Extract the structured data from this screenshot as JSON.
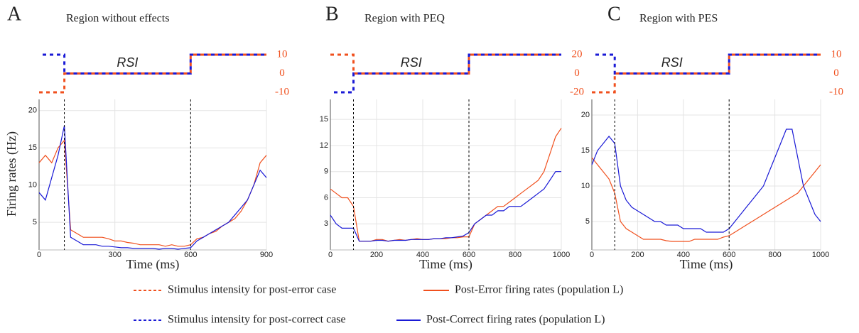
{
  "chart_data": [
    {
      "type": "line",
      "panel_label": "A",
      "title": "Region without effects",
      "x_label": "Time (ms)",
      "y_label": "Firing rates (Hz)",
      "x": [
        0,
        25,
        50,
        75,
        100,
        125,
        150,
        175,
        200,
        225,
        250,
        275,
        300,
        325,
        350,
        375,
        400,
        425,
        450,
        475,
        500,
        525,
        550,
        575,
        600,
        625,
        650,
        675,
        700,
        725,
        750,
        775,
        800,
        825,
        850,
        875,
        900
      ],
      "series": [
        {
          "name": "Post-Error firing rates (population L)",
          "color": "#f0501e",
          "values": [
            13,
            14,
            13,
            15,
            16,
            4,
            3.5,
            3,
            3,
            3,
            3,
            2.8,
            2.5,
            2.5,
            2.3,
            2.2,
            2,
            2,
            2,
            2,
            1.8,
            2,
            1.8,
            1.8,
            2,
            2.8,
            3,
            3.5,
            3.8,
            4.5,
            5,
            5.5,
            6.5,
            8,
            10,
            13,
            14
          ]
        },
        {
          "name": "Post-Correct firing rates (population L)",
          "color": "#1a1ad6",
          "values": [
            9,
            8,
            11,
            14,
            18,
            3,
            2.5,
            2,
            2,
            2,
            1.8,
            1.8,
            1.7,
            1.6,
            1.6,
            1.5,
            1.5,
            1.5,
            1.5,
            1.4,
            1.5,
            1.5,
            1.4,
            1.5,
            1.6,
            2.5,
            3,
            3.5,
            4,
            4.5,
            5,
            6,
            7,
            8,
            10,
            12,
            11
          ]
        }
      ],
      "xlim": [
        0,
        900
      ],
      "xticks": [
        0,
        300,
        600,
        900
      ],
      "ylim": [
        1.3,
        21.5
      ],
      "yticks": [
        5,
        10,
        15,
        20
      ],
      "grid": true,
      "vlines": [
        100,
        600
      ],
      "stimulus": {
        "label": "RSI",
        "ylim": [
          -10,
          10
        ],
        "yticks": [
          10,
          0,
          -10
        ],
        "tick_color": "#f0501e",
        "x": [
          0,
          100,
          100,
          600,
          600,
          900
        ],
        "series": [
          {
            "name": "Stimulus intensity for post-error case",
            "color": "#f0501e",
            "values": [
              -10,
              -10,
              0,
              0,
              10,
              10
            ]
          },
          {
            "name": "Stimulus intensity for post-correct case",
            "color": "#1a1ad6",
            "values": [
              10,
              10,
              0,
              0,
              10,
              10
            ]
          }
        ]
      }
    },
    {
      "type": "line",
      "panel_label": "B",
      "title": "Region with PEQ",
      "x_label": "Time (ms)",
      "x": [
        0,
        25,
        50,
        75,
        100,
        125,
        150,
        175,
        200,
        225,
        250,
        275,
        300,
        325,
        350,
        375,
        400,
        425,
        450,
        475,
        500,
        525,
        550,
        575,
        600,
        625,
        650,
        675,
        700,
        725,
        750,
        775,
        800,
        825,
        850,
        875,
        900,
        925,
        950,
        975,
        1000
      ],
      "series": [
        {
          "color": "#f0501e",
          "values": [
            7,
            6.5,
            6,
            6,
            5,
            1,
            1,
            1,
            1.2,
            1.2,
            1,
            1.1,
            1.2,
            1.1,
            1.2,
            1.3,
            1.2,
            1.2,
            1.3,
            1.3,
            1.3,
            1.4,
            1.4,
            1.5,
            1.5,
            3,
            3.5,
            4,
            4.5,
            5,
            5,
            5.5,
            6,
            6.5,
            7,
            7.5,
            8,
            9,
            11,
            13,
            14
          ]
        },
        {
          "color": "#1a1ad6",
          "values": [
            4,
            3,
            2.5,
            2.5,
            2.5,
            1,
            1,
            1,
            1.1,
            1.1,
            1,
            1.1,
            1.1,
            1.1,
            1.2,
            1.2,
            1.2,
            1.2,
            1.3,
            1.3,
            1.4,
            1.4,
            1.5,
            1.6,
            2,
            3,
            3.5,
            4,
            4,
            4.5,
            4.5,
            5,
            5,
            5,
            5.5,
            6,
            6.5,
            7,
            8,
            9,
            9
          ]
        }
      ],
      "xlim": [
        0,
        1000
      ],
      "xticks": [
        0,
        200,
        400,
        600,
        800,
        1000
      ],
      "ylim": [
        0,
        17.3
      ],
      "yticks": [
        3,
        6,
        9,
        12,
        15
      ],
      "grid": true,
      "vlines": [
        100,
        600
      ],
      "stimulus": {
        "label": "RSI",
        "ylim": [
          -20,
          20
        ],
        "yticks": [
          20,
          0,
          -20
        ],
        "tick_color": "#f0501e",
        "x": [
          0,
          100,
          100,
          600,
          600,
          1000
        ],
        "series": [
          {
            "color": "#f0501e",
            "values": [
              20,
              20,
              0,
              0,
              20,
              20
            ]
          },
          {
            "color": "#1a1ad6",
            "values": [
              -20,
              -20,
              0,
              0,
              20,
              20
            ]
          }
        ]
      }
    },
    {
      "type": "line",
      "panel_label": "C",
      "title": "Region with PES",
      "x_label": "Time (ms)",
      "x": [
        0,
        25,
        50,
        75,
        100,
        125,
        150,
        175,
        200,
        225,
        250,
        275,
        300,
        325,
        350,
        375,
        400,
        425,
        450,
        475,
        500,
        525,
        550,
        575,
        600,
        625,
        650,
        675,
        700,
        725,
        750,
        775,
        800,
        825,
        850,
        875,
        900,
        925,
        950,
        975,
        1000
      ],
      "series": [
        {
          "color": "#f0501e",
          "values": [
            14,
            13,
            12,
            11,
            9,
            5,
            4,
            3.5,
            3,
            2.5,
            2.5,
            2.5,
            2.5,
            2.3,
            2.2,
            2.2,
            2.2,
            2.2,
            2.5,
            2.5,
            2.5,
            2.5,
            2.5,
            2.8,
            3,
            3.5,
            4,
            4.5,
            5,
            5.5,
            6,
            6.5,
            7,
            7.5,
            8,
            8.5,
            9,
            10,
            11,
            12,
            13
          ]
        },
        {
          "color": "#1a1ad6",
          "values": [
            13,
            15,
            16,
            17,
            16,
            10,
            8,
            7,
            6.5,
            6,
            5.5,
            5,
            5,
            4.5,
            4.5,
            4.5,
            4,
            4,
            4,
            4,
            3.5,
            3.5,
            3.5,
            3.5,
            4,
            5,
            6,
            7,
            8,
            9,
            10,
            12,
            14,
            16,
            18,
            18,
            14,
            10,
            8,
            6,
            5
          ]
        }
      ],
      "xlim": [
        0,
        1000
      ],
      "xticks": [
        0,
        200,
        400,
        600,
        800,
        1000
      ],
      "ylim": [
        1,
        22.2
      ],
      "yticks": [
        5,
        10,
        15,
        20
      ],
      "grid": true,
      "vlines": [
        100,
        600
      ],
      "stimulus": {
        "label": "RSI",
        "ylim": [
          -10,
          10
        ],
        "yticks": [
          10,
          0,
          -10
        ],
        "tick_color": "#f0501e",
        "x": [
          0,
          100,
          100,
          600,
          600,
          1000
        ],
        "series": [
          {
            "color": "#f0501e",
            "values": [
              -10,
              -10,
              0,
              0,
              10,
              10
            ]
          },
          {
            "color": "#1a1ad6",
            "values": [
              10,
              10,
              0,
              0,
              10,
              10
            ]
          }
        ]
      }
    }
  ]
}
